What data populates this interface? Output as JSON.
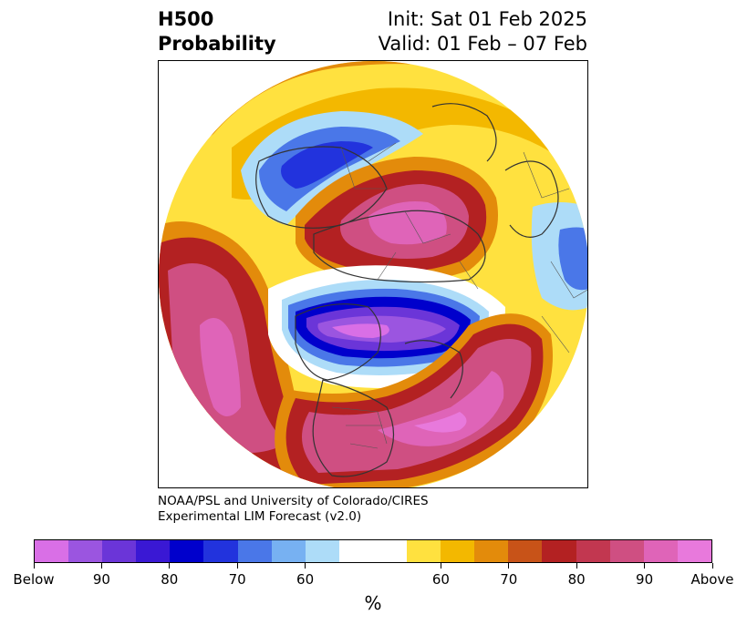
{
  "title": {
    "left_line1": "H500",
    "left_line2": "Probability",
    "right_line1": "Init: Sat 01 Feb 2025",
    "right_line2": "Valid: 01 Feb – 07 Feb"
  },
  "credit": {
    "line1": "NOAA/PSL and University of Colorado/CIRES",
    "line2": "Experimental LIM Forecast (v2.0)"
  },
  "colorbar": {
    "colors": [
      "#d96fe6",
      "#9b55e0",
      "#6b35d8",
      "#3a18d4",
      "#0000cc",
      "#2233dd",
      "#4a77e8",
      "#77b1f2",
      "#addcf8",
      "#ffffff",
      "#ffe13f",
      "#f3b800",
      "#e38b0b",
      "#c85318",
      "#b32122",
      "#c23750",
      "#cf4f82",
      "#df64b8",
      "#e879dc"
    ],
    "tick_labels": [
      "Below",
      "90",
      "80",
      "70",
      "60",
      "60",
      "70",
      "80",
      "90",
      "Above"
    ],
    "units": "%"
  },
  "map": {
    "projection": "north-polar-stereographic",
    "field": "500 hPa height probability",
    "below_anomaly_regions": [
      "Arctic / northern Canada",
      "Northern Europe",
      "Central Asia (right edge)"
    ],
    "above_anomaly_regions": [
      "Siberia / Northern Asia",
      "North Pacific",
      "Eastern United States / Western Atlantic"
    ]
  }
}
